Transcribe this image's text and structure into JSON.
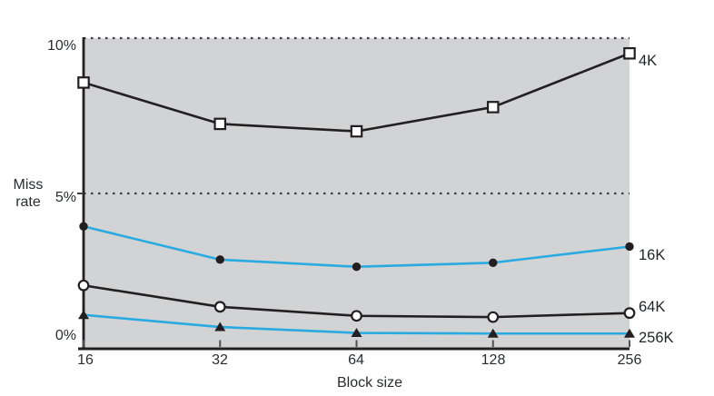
{
  "chart_data": {
    "type": "line",
    "title": "",
    "xlabel": "Block size",
    "ylabel": "Miss rate",
    "x_scale": "log2 (powers of two, evenly spaced)",
    "categories": [
      "16",
      "32",
      "64",
      "128",
      "256"
    ],
    "ylim": [
      0,
      10
    ],
    "yticks": [
      {
        "label": "10%",
        "value": 10
      },
      {
        "label": "5%",
        "value": 5
      },
      {
        "label": "0%",
        "value": 0
      }
    ],
    "grid": "horizontal dotted lines at 5% and 10%",
    "legend_position": "right of last data point",
    "plot_bg": "#d1d3d4",
    "colors": {
      "black_line": "#231f20",
      "cyan_line": "#29abe2",
      "marker_fill_white": "#ffffff"
    },
    "series": [
      {
        "name": "4K",
        "color": "#231f20",
        "marker": "square-open",
        "marker_color": "#231f20",
        "values": [
          8.57,
          7.24,
          7.0,
          7.78,
          9.51
        ]
      },
      {
        "name": "16K",
        "color": "#29abe2",
        "marker": "circle-filled",
        "marker_color": "#231f20",
        "values": [
          3.94,
          2.87,
          2.64,
          2.77,
          3.29
        ]
      },
      {
        "name": "64K",
        "color": "#231f20",
        "marker": "circle-open",
        "marker_color": "#231f20",
        "values": [
          2.04,
          1.35,
          1.06,
          1.02,
          1.15
        ]
      },
      {
        "name": "256K",
        "color": "#29abe2",
        "marker": "triangle-filled",
        "marker_color": "#231f20",
        "values": [
          1.09,
          0.7,
          0.51,
          0.49,
          0.49
        ]
      }
    ]
  }
}
